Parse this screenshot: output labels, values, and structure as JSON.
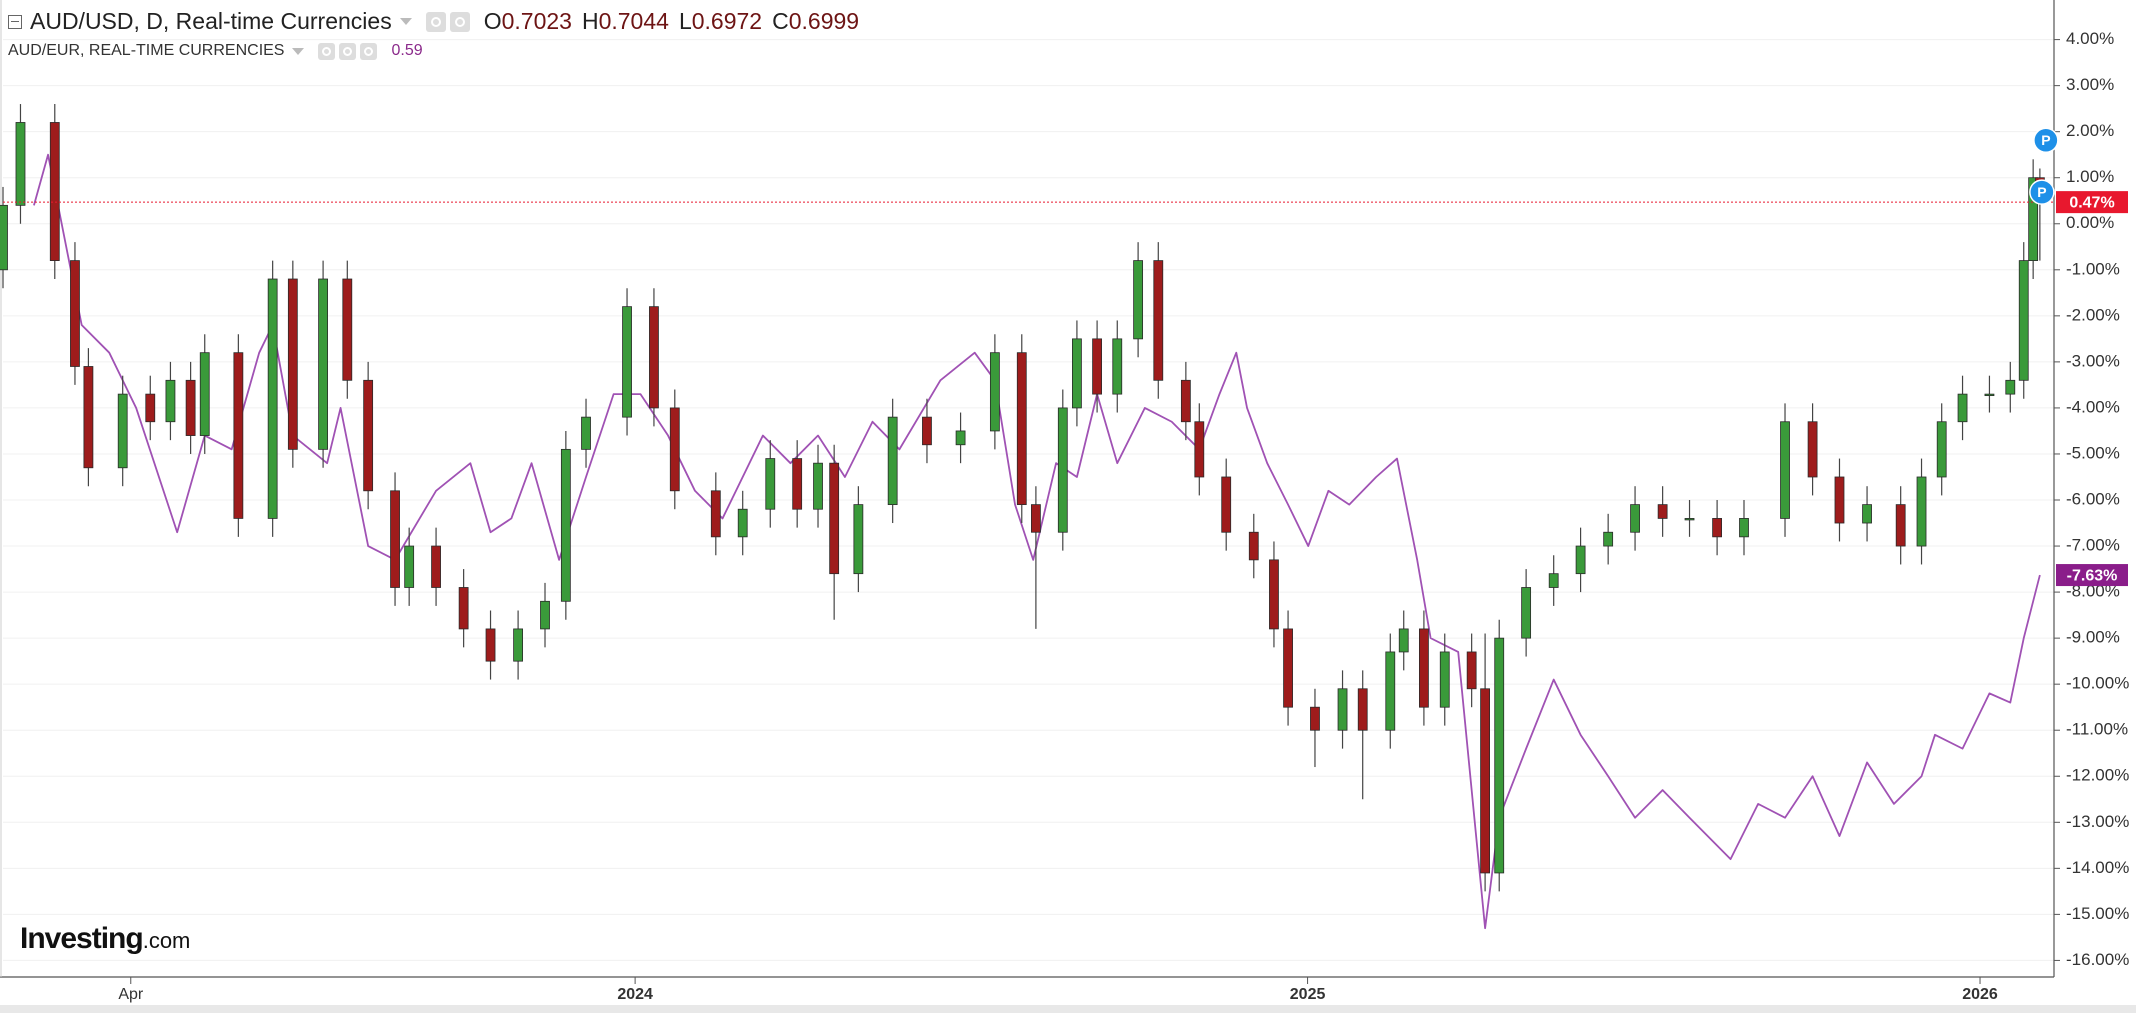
{
  "chart_data": {
    "type": "candlestick",
    "title": "AUD/USD, D, Real-time Currencies",
    "ohlc_labels": [
      {
        "name": "O",
        "value": 0.7023
      },
      {
        "name": "H",
        "value": 0.7044
      },
      {
        "name": "L",
        "value": 0.6972
      },
      {
        "name": "C",
        "value": 0.6999
      }
    ],
    "up_color": "#3a9a3a",
    "down_color": "#9e1c1c",
    "x": [
      2023.06,
      2023.086,
      2023.137,
      2023.167,
      2023.187,
      2023.238,
      2023.279,
      2023.309,
      2023.339,
      2023.36,
      2023.41,
      2023.461,
      2023.491,
      2023.536,
      2023.572,
      2023.603,
      2023.643,
      2023.664,
      2023.704,
      2023.745,
      2023.785,
      2023.826,
      2023.866,
      2023.897,
      2023.927,
      2023.988,
      2024.028,
      2024.059,
      2024.12,
      2024.16,
      2024.201,
      2024.241,
      2024.272,
      2024.296,
      2024.332,
      2024.383,
      2024.434,
      2024.484,
      2024.535,
      2024.575,
      2024.596,
      2024.636,
      2024.657,
      2024.687,
      2024.717,
      2024.748,
      2024.778,
      2024.819,
      2024.839,
      2024.879,
      2024.92,
      2024.95,
      2024.971,
      2025.011,
      2025.052,
      2025.082,
      2025.123,
      2025.143,
      2025.173,
      2025.204,
      2025.244,
      2025.264,
      2025.285,
      2025.325,
      2025.366,
      2025.406,
      2025.447,
      2025.487,
      2025.528,
      2025.568,
      2025.609,
      2025.649,
      2025.71,
      2025.751,
      2025.791,
      2025.832,
      2025.882,
      2025.913,
      2025.943,
      2025.974,
      2026.014,
      2026.045,
      2026.065,
      2026.079,
      2026.089
    ],
    "open": [
      -1.0,
      0.4,
      2.2,
      -0.8,
      -3.1,
      -5.3,
      -3.7,
      -4.3,
      -3.4,
      -4.6,
      -2.8,
      -6.4,
      -1.2,
      -4.9,
      -1.2,
      -3.4,
      -5.8,
      -7.9,
      -7.0,
      -7.9,
      -8.8,
      -9.5,
      -8.8,
      -8.2,
      -4.9,
      -4.2,
      -1.8,
      -4.0,
      -5.8,
      -6.8,
      -6.2,
      -5.1,
      -6.2,
      -5.2,
      -7.6,
      -6.1,
      -4.2,
      -4.8,
      -4.5,
      -2.8,
      -6.1,
      -6.7,
      -4.0,
      -2.5,
      -3.7,
      -2.5,
      -0.8,
      -3.4,
      -4.3,
      -5.5,
      -6.7,
      -7.3,
      -8.8,
      -10.5,
      -11.0,
      -10.1,
      -11.0,
      -9.3,
      -8.8,
      -10.5,
      -9.3,
      -10.1,
      -14.1,
      -9.0,
      -7.9,
      -7.6,
      -7.0,
      -6.7,
      -6.1,
      -6.4,
      -6.4,
      -6.8,
      -6.4,
      -4.3,
      -5.5,
      -6.5,
      -6.1,
      -7.0,
      -5.5,
      -4.3,
      -3.7,
      -3.7,
      -3.4,
      -0.8,
      1.0
    ],
    "high": [
      0.8,
      2.6,
      2.6,
      -0.4,
      -2.7,
      -3.3,
      -3.3,
      -3.0,
      -3.0,
      -2.4,
      -2.4,
      -0.8,
      -0.8,
      -0.8,
      -0.8,
      -3.0,
      -5.4,
      -6.6,
      -6.6,
      -7.5,
      -8.4,
      -8.4,
      -7.8,
      -4.5,
      -3.8,
      -1.4,
      -1.4,
      -3.6,
      -5.4,
      -5.8,
      -4.7,
      -4.7,
      -4.8,
      -4.8,
      -5.7,
      -3.8,
      -3.8,
      -4.1,
      -2.4,
      -2.4,
      -5.7,
      -3.6,
      -2.1,
      -2.1,
      -2.1,
      -0.4,
      -0.4,
      -3.0,
      -3.9,
      -5.1,
      -6.3,
      -6.9,
      -8.4,
      -10.1,
      -9.7,
      -9.7,
      -8.9,
      -8.4,
      -8.4,
      -8.9,
      -8.9,
      -8.9,
      -8.6,
      -7.5,
      -7.2,
      -6.6,
      -6.3,
      -5.7,
      -5.7,
      -6.0,
      -6.0,
      -6.0,
      -3.9,
      -3.9,
      -5.1,
      -5.7,
      -5.7,
      -5.1,
      -3.9,
      -3.3,
      -3.3,
      -3.0,
      -0.4,
      1.4,
      1.2
    ],
    "low": [
      -1.4,
      0.0,
      -1.2,
      -3.5,
      -5.7,
      -5.7,
      -4.7,
      -4.7,
      -5.0,
      -5.0,
      -6.8,
      -6.8,
      -5.3,
      -5.3,
      -3.8,
      -6.2,
      -8.3,
      -8.3,
      -8.3,
      -9.2,
      -9.9,
      -9.9,
      -9.2,
      -8.6,
      -5.3,
      -4.6,
      -4.4,
      -6.2,
      -7.2,
      -7.2,
      -6.6,
      -6.6,
      -6.6,
      -8.6,
      -8.0,
      -6.5,
      -5.2,
      -5.2,
      -4.9,
      -6.5,
      -8.8,
      -7.1,
      -4.4,
      -4.1,
      -4.1,
      -2.9,
      -3.8,
      -4.7,
      -5.9,
      -7.1,
      -7.7,
      -9.2,
      -10.9,
      -11.8,
      -11.4,
      -12.5,
      -11.4,
      -9.7,
      -10.9,
      -10.9,
      -10.5,
      -14.5,
      -14.5,
      -9.4,
      -8.3,
      -8.0,
      -7.4,
      -7.1,
      -6.8,
      -6.8,
      -7.2,
      -7.2,
      -6.8,
      -5.9,
      -6.9,
      -6.9,
      -7.4,
      -7.4,
      -5.9,
      -4.7,
      -4.1,
      -4.1,
      -3.8,
      -1.2,
      -0.8
    ],
    "close": [
      0.4,
      2.2,
      -0.8,
      -3.1,
      -5.3,
      -3.7,
      -4.3,
      -3.4,
      -4.6,
      -2.8,
      -6.4,
      -1.2,
      -4.9,
      -1.2,
      -3.4,
      -5.8,
      -7.9,
      -7.0,
      -7.9,
      -8.8,
      -9.5,
      -8.8,
      -8.2,
      -4.9,
      -4.2,
      -1.8,
      -4.0,
      -5.8,
      -6.8,
      -6.2,
      -5.1,
      -6.2,
      -5.2,
      -7.6,
      -6.1,
      -4.2,
      -4.8,
      -4.5,
      -2.8,
      -6.1,
      -6.7,
      -4.0,
      -2.5,
      -3.7,
      -2.5,
      -0.8,
      -3.4,
      -4.3,
      -5.5,
      -6.7,
      -7.3,
      -8.8,
      -10.5,
      -11.0,
      -10.1,
      -11.0,
      -9.3,
      -8.8,
      -10.5,
      -9.3,
      -10.1,
      -14.1,
      -9.0,
      -7.9,
      -7.6,
      -7.0,
      -6.7,
      -6.1,
      -6.4,
      -6.4,
      -6.8,
      -6.4,
      -4.3,
      -5.5,
      -6.5,
      -6.1,
      -7.0,
      -5.5,
      -4.3,
      -3.7,
      -3.7,
      -3.4,
      -0.8,
      1.0,
      0.47
    ],
    "price_label": {
      "value": 0.47,
      "label": "0.47%"
    },
    "price_color": "#e8182e",
    "overlay": {
      "type": "line",
      "name": "AUD/EUR, REAL-TIME CURRENCIES",
      "last": 0.59,
      "color": "#a052b4",
      "badge_color": "#8a1d8a",
      "x": [
        2023.106,
        2023.127,
        2023.177,
        2023.218,
        2023.258,
        2023.319,
        2023.36,
        2023.4,
        2023.441,
        2023.461,
        2023.491,
        2023.542,
        2023.562,
        2023.603,
        2023.643,
        2023.704,
        2023.755,
        2023.785,
        2023.816,
        2023.846,
        2023.887,
        2023.927,
        2023.968,
        2024.008,
        2024.049,
        2024.089,
        2024.13,
        2024.19,
        2024.231,
        2024.272,
        2024.312,
        2024.353,
        2024.393,
        2024.454,
        2024.505,
        2024.535,
        2024.565,
        2024.592,
        2024.626,
        2024.657,
        2024.687,
        2024.717,
        2024.758,
        2024.798,
        2024.839,
        2024.869,
        2024.894,
        2024.91,
        2024.94,
        2024.971,
        2025.001,
        2025.031,
        2025.062,
        2025.102,
        2025.133,
        2025.163,
        2025.183,
        2025.224,
        2025.264,
        2025.285,
        2025.325,
        2025.366,
        2025.406,
        2025.447,
        2025.487,
        2025.528,
        2025.568,
        2025.629,
        2025.67,
        2025.71,
        2025.751,
        2025.791,
        2025.832,
        2025.872,
        2025.913,
        2025.933,
        2025.974,
        2026.014,
        2026.045,
        2026.065,
        2026.079,
        2026.089
      ],
      "values": [
        0.4,
        1.5,
        -2.2,
        -2.8,
        -4.0,
        -6.7,
        -4.6,
        -4.9,
        -2.8,
        -2.2,
        -4.6,
        -5.2,
        -4.0,
        -7.0,
        -7.3,
        -5.8,
        -5.2,
        -6.7,
        -6.4,
        -5.2,
        -7.3,
        -5.5,
        -3.7,
        -3.7,
        -4.6,
        -5.8,
        -6.4,
        -4.6,
        -5.2,
        -4.6,
        -5.5,
        -4.3,
        -4.9,
        -3.4,
        -2.8,
        -3.4,
        -6.1,
        -7.3,
        -5.2,
        -5.5,
        -3.7,
        -5.2,
        -4.0,
        -4.3,
        -4.9,
        -3.7,
        -2.8,
        -4.0,
        -5.2,
        -6.1,
        -7.0,
        -5.8,
        -6.1,
        -5.5,
        -5.1,
        -7.3,
        -9.0,
        -9.3,
        -15.3,
        -12.9,
        -11.4,
        -9.9,
        -11.1,
        -12.0,
        -12.9,
        -12.3,
        -12.9,
        -13.8,
        -12.6,
        -12.9,
        -12.0,
        -13.3,
        -11.7,
        -12.6,
        -12.0,
        -11.1,
        -11.4,
        -10.2,
        -10.4,
        -9.0,
        -8.2,
        -7.63
      ],
      "price_label": {
        "value": -7.63,
        "label": "-7.63%"
      }
    },
    "xlim": [
      2023.06,
      2026.11
    ],
    "xticks": [
      {
        "value": 2023.25,
        "label": "Apr"
      },
      2024,
      2025,
      2026
    ],
    "ylim": [
      -16.36,
      4.86
    ],
    "yticks": [
      {
        "value": 4,
        "label": "4.00%"
      },
      {
        "value": 3,
        "label": "3.00%"
      },
      {
        "value": 2,
        "label": "2.00%"
      },
      {
        "value": 1,
        "label": "1.00%"
      },
      {
        "value": 0,
        "label": "0.00%"
      },
      {
        "value": -1,
        "label": "-1.00%"
      },
      {
        "value": -2,
        "label": "-2.00%"
      },
      {
        "value": -3,
        "label": "-3.00%"
      },
      {
        "value": -4,
        "label": "-4.00%"
      },
      {
        "value": -5,
        "label": "-5.00%"
      },
      {
        "value": -6,
        "label": "-6.00%"
      },
      {
        "value": -7,
        "label": "-7.00%"
      },
      {
        "value": -8,
        "label": "-8.00%"
      },
      {
        "value": -9,
        "label": "-9.00%"
      },
      {
        "value": -10,
        "label": "-10.00%"
      },
      {
        "value": -11,
        "label": "-11.00%"
      },
      {
        "value": -12,
        "label": "-12.00%"
      },
      {
        "value": -13,
        "label": "-13.00%"
      },
      {
        "value": -14,
        "label": "-14.00%"
      },
      {
        "value": -15,
        "label": "-15.00%"
      },
      {
        "value": -16,
        "label": "-16.00%"
      }
    ],
    "grid": true,
    "markers": [
      "P",
      "P"
    ],
    "brand": "Investing",
    "brand_suffix": ".com"
  }
}
